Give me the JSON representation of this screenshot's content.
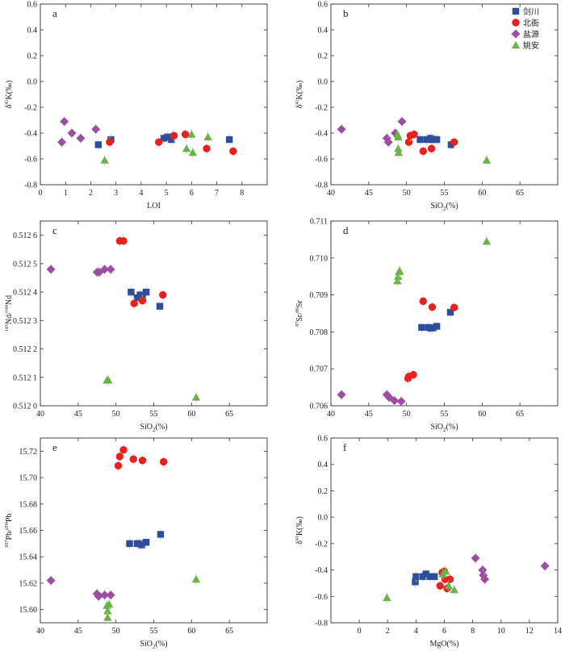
{
  "colors": {
    "jianchuan": "#2e4d9a",
    "beiya": "#e8211f",
    "yanyuan": "#9b4ea2",
    "yaoan": "#6ab446",
    "axis": "#333333"
  },
  "legend": [
    {
      "key": "jianchuan",
      "label": "剑川",
      "shape": "square"
    },
    {
      "key": "beiya",
      "label": "北衙",
      "shape": "circle"
    },
    {
      "key": "yanyuan",
      "label": "盐源",
      "shape": "diamond"
    },
    {
      "key": "yaoan",
      "label": "姚安",
      "shape": "triangle"
    }
  ],
  "chart_data": [
    {
      "panel": "a",
      "type": "scatter",
      "xlabel": "LOI",
      "ylabel_main": "δ",
      "ylabel_sup": "41",
      "ylabel_rest": "K(‰)",
      "ylabel_sub": "",
      "xlim": [
        0,
        9
      ],
      "ylim": [
        -0.8,
        0.6
      ],
      "xticks": [
        0,
        1,
        2,
        3,
        4,
        5,
        6,
        7,
        8
      ],
      "yticks": [
        -0.8,
        -0.6,
        -0.4,
        -0.2,
        0.0,
        0.2,
        0.4,
        0.6
      ],
      "ytick_labels": [
        "-0.8",
        "-0.6",
        "-0.4",
        "-0.2",
        "0.0",
        "0.2",
        "0.4",
        "0.6"
      ],
      "series": [
        {
          "key": "jianchuan",
          "points": [
            [
              2.3,
              -0.49
            ],
            [
              2.8,
              -0.45
            ],
            [
              4.9,
              -0.44
            ],
            [
              5.05,
              -0.43
            ],
            [
              5.2,
              -0.45
            ],
            [
              7.5,
              -0.45
            ]
          ]
        },
        {
          "key": "beiya",
          "points": [
            [
              2.75,
              -0.47
            ],
            [
              4.7,
              -0.47
            ],
            [
              5.3,
              -0.42
            ],
            [
              5.75,
              -0.41
            ],
            [
              6.6,
              -0.52
            ],
            [
              7.65,
              -0.54
            ]
          ]
        },
        {
          "key": "yanyuan",
          "points": [
            [
              0.85,
              -0.47
            ],
            [
              0.95,
              -0.31
            ],
            [
              1.25,
              -0.4
            ],
            [
              1.6,
              -0.44
            ],
            [
              2.2,
              -0.37
            ]
          ]
        },
        {
          "key": "yaoan",
          "points": [
            [
              2.55,
              -0.61
            ],
            [
              5.8,
              -0.52
            ],
            [
              6.0,
              -0.41
            ],
            [
              6.05,
              -0.55
            ],
            [
              6.65,
              -0.43
            ]
          ]
        }
      ]
    },
    {
      "panel": "b",
      "type": "scatter",
      "xlabel": "SiO",
      "xlabel_sub": "2",
      "xlabel_rest": "(%)",
      "ylabel_main": "δ",
      "ylabel_sup": "41",
      "ylabel_rest": "K(‰)",
      "ylabel_sub": "",
      "xlim": [
        40,
        70
      ],
      "ylim": [
        -0.8,
        0.6
      ],
      "xticks": [
        40,
        45,
        50,
        55,
        60,
        65
      ],
      "yticks": [
        -0.8,
        -0.6,
        -0.4,
        -0.2,
        0.0,
        0.2,
        0.4,
        0.6
      ],
      "ytick_labels": [
        "-0.8",
        "-0.6",
        "-0.4",
        "-0.2",
        "0.0",
        "0.2",
        "0.4",
        "0.6"
      ],
      "series": [
        {
          "key": "jianchuan",
          "points": [
            [
              51.8,
              -0.45
            ],
            [
              52.7,
              -0.45
            ],
            [
              53.2,
              -0.44
            ],
            [
              53.5,
              -0.45
            ],
            [
              54.0,
              -0.45
            ],
            [
              55.9,
              -0.49
            ]
          ]
        },
        {
          "key": "beiya",
          "points": [
            [
              50.3,
              -0.47
            ],
            [
              50.5,
              -0.42
            ],
            [
              51.0,
              -0.41
            ],
            [
              52.2,
              -0.54
            ],
            [
              53.3,
              -0.52
            ],
            [
              56.3,
              -0.47
            ]
          ]
        },
        {
          "key": "yanyuan",
          "points": [
            [
              41.4,
              -0.37
            ],
            [
              47.4,
              -0.44
            ],
            [
              47.6,
              -0.47
            ],
            [
              48.5,
              -0.4
            ],
            [
              49.4,
              -0.31
            ]
          ]
        },
        {
          "key": "yaoan",
          "points": [
            [
              48.8,
              -0.41
            ],
            [
              48.9,
              -0.43
            ],
            [
              48.9,
              -0.52
            ],
            [
              48.95,
              -0.55
            ],
            [
              60.6,
              -0.61
            ]
          ]
        }
      ]
    },
    {
      "panel": "c",
      "type": "scatter",
      "xlabel": "SiO",
      "xlabel_sub": "2",
      "xlabel_rest": "(%)",
      "ylabel_main": "",
      "ylabel_sup": "143",
      "ylabel_rest": "Nd/",
      "ylabel_sup2": "144",
      "ylabel_rest2": "Nd",
      "ylabel_sub": "",
      "xlim": [
        40,
        70
      ],
      "ylim": [
        0.512,
        0.51265
      ],
      "xticks": [
        40,
        45,
        50,
        55,
        60,
        65
      ],
      "yticks": [
        0.512,
        0.5121,
        0.5122,
        0.5123,
        0.5124,
        0.5125,
        0.5126
      ],
      "ytick_labels": [
        "0.512 0",
        "0.512 1",
        "0.512 2",
        "0.512 3",
        "0.512 4",
        "0.512 5",
        "0.512 6"
      ],
      "series": [
        {
          "key": "jianchuan",
          "points": [
            [
              52.0,
              0.5124
            ],
            [
              52.8,
              0.51238
            ],
            [
              53.2,
              0.51239
            ],
            [
              53.5,
              0.51239
            ],
            [
              54.0,
              0.5124
            ],
            [
              55.8,
              0.51235
            ]
          ]
        },
        {
          "key": "beiya",
          "points": [
            [
              50.5,
              0.51258
            ],
            [
              51.0,
              0.51258
            ],
            [
              52.4,
              0.51236
            ],
            [
              53.5,
              0.51237
            ],
            [
              56.2,
              0.51239
            ]
          ]
        },
        {
          "key": "yanyuan",
          "points": [
            [
              41.4,
              0.51248
            ],
            [
              47.5,
              0.51247
            ],
            [
              47.8,
              0.51247
            ],
            [
              48.5,
              0.51248
            ],
            [
              49.3,
              0.51248
            ]
          ]
        },
        {
          "key": "yaoan",
          "points": [
            [
              48.8,
              0.51209
            ],
            [
              49.0,
              0.51209
            ],
            [
              60.6,
              0.51203
            ]
          ]
        }
      ]
    },
    {
      "panel": "d",
      "type": "scatter",
      "xlabel": "SiO",
      "xlabel_sub": "2",
      "xlabel_rest": "(%)",
      "ylabel_main": "",
      "ylabel_sup": "87",
      "ylabel_rest": "Sr/",
      "ylabel_sup2": "86",
      "ylabel_rest2": "Sr",
      "ylabel_sub": "",
      "xlim": [
        40,
        70
      ],
      "ylim": [
        0.706,
        0.711
      ],
      "xticks": [
        40,
        45,
        50,
        55,
        60,
        65
      ],
      "yticks": [
        0.706,
        0.707,
        0.708,
        0.709,
        0.71,
        0.711
      ],
      "ytick_labels": [
        "0.706",
        "0.707",
        "0.708",
        "0.709",
        "0.710",
        "0.711"
      ],
      "series": [
        {
          "key": "jianchuan",
          "points": [
            [
              52.0,
              0.70812
            ],
            [
              52.9,
              0.70812
            ],
            [
              53.2,
              0.7081
            ],
            [
              53.5,
              0.70811
            ],
            [
              54.0,
              0.70815
            ],
            [
              55.8,
              0.70853
            ]
          ]
        },
        {
          "key": "beiya",
          "points": [
            [
              50.2,
              0.70674
            ],
            [
              50.3,
              0.70679
            ],
            [
              50.9,
              0.70684
            ],
            [
              52.2,
              0.70883
            ],
            [
              53.4,
              0.70867
            ],
            [
              56.3,
              0.70866
            ]
          ]
        },
        {
          "key": "yanyuan",
          "points": [
            [
              41.4,
              0.7063
            ],
            [
              47.4,
              0.7063
            ],
            [
              47.7,
              0.70623
            ],
            [
              48.4,
              0.70614
            ],
            [
              49.3,
              0.70612
            ]
          ]
        },
        {
          "key": "yaoan",
          "points": [
            [
              48.8,
              0.70938
            ],
            [
              48.9,
              0.7095
            ],
            [
              49.0,
              0.70963
            ],
            [
              49.1,
              0.70965
            ],
            [
              60.6,
              0.71045
            ]
          ]
        }
      ]
    },
    {
      "panel": "e",
      "type": "scatter",
      "xlabel": "SiO",
      "xlabel_sub": "2",
      "xlabel_rest": "(%)",
      "ylabel_main": "",
      "ylabel_sup": "207",
      "ylabel_rest": "Pb/",
      "ylabel_sup2": "204",
      "ylabel_rest2": "Pb",
      "ylabel_sub": "",
      "xlim": [
        40,
        70
      ],
      "ylim": [
        15.59,
        15.73
      ],
      "xticks": [
        40,
        45,
        50,
        55,
        60,
        65
      ],
      "yticks": [
        15.6,
        15.62,
        15.64,
        15.66,
        15.68,
        15.7,
        15.72
      ],
      "ytick_labels": [
        "15.60",
        "15.62",
        "15.64",
        "15.66",
        "15.68",
        "15.70",
        "15.72"
      ],
      "series": [
        {
          "key": "jianchuan",
          "points": [
            [
              51.8,
              15.65
            ],
            [
              52.8,
              15.65
            ],
            [
              53.1,
              15.65
            ],
            [
              53.4,
              15.649
            ],
            [
              54.0,
              15.651
            ],
            [
              55.9,
              15.657
            ]
          ]
        },
        {
          "key": "beiya",
          "points": [
            [
              50.3,
              15.709
            ],
            [
              50.5,
              15.716
            ],
            [
              51.0,
              15.721
            ],
            [
              52.3,
              15.714
            ],
            [
              53.5,
              15.713
            ],
            [
              56.3,
              15.712
            ]
          ]
        },
        {
          "key": "yanyuan",
          "points": [
            [
              41.4,
              15.622
            ],
            [
              47.5,
              15.612
            ],
            [
              47.7,
              15.61
            ],
            [
              48.5,
              15.611
            ],
            [
              49.3,
              15.611
            ]
          ]
        },
        {
          "key": "yaoan",
          "points": [
            [
              48.8,
              15.603
            ],
            [
              48.9,
              15.599
            ],
            [
              48.9,
              15.594
            ],
            [
              49.1,
              15.604
            ],
            [
              60.6,
              15.623
            ]
          ]
        }
      ]
    },
    {
      "panel": "f",
      "type": "scatter",
      "xlabel": "MgO(%)",
      "ylabel_main": "δ",
      "ylabel_sup": "41",
      "ylabel_rest": "K(‰)",
      "ylabel_sub": "",
      "xlim": [
        -2,
        14
      ],
      "ylim": [
        -0.8,
        0.6
      ],
      "xticks": [
        0,
        2,
        4,
        6,
        8,
        10,
        12,
        14
      ],
      "yticks": [
        -0.8,
        -0.6,
        -0.4,
        -0.2,
        0.0,
        0.2,
        0.4,
        0.6
      ],
      "ytick_labels": [
        "-0.8",
        "-0.6",
        "-0.4",
        "-0.2",
        "0.0",
        "0.2",
        "0.4",
        "0.6"
      ],
      "series": [
        {
          "key": "jianchuan",
          "points": [
            [
              3.95,
              -0.49
            ],
            [
              4.0,
              -0.45
            ],
            [
              4.5,
              -0.45
            ],
            [
              4.7,
              -0.43
            ],
            [
              5.0,
              -0.45
            ],
            [
              5.3,
              -0.45
            ]
          ]
        },
        {
          "key": "beiya",
          "points": [
            [
              5.7,
              -0.52
            ],
            [
              5.85,
              -0.42
            ],
            [
              6.0,
              -0.41
            ],
            [
              6.05,
              -0.47
            ],
            [
              6.2,
              -0.54
            ],
            [
              6.4,
              -0.47
            ]
          ]
        },
        {
          "key": "yanyuan",
          "points": [
            [
              8.2,
              -0.31
            ],
            [
              8.7,
              -0.4
            ],
            [
              8.75,
              -0.44
            ],
            [
              8.85,
              -0.47
            ],
            [
              13.1,
              -0.37
            ]
          ]
        },
        {
          "key": "yaoan",
          "points": [
            [
              1.95,
              -0.61
            ],
            [
              5.9,
              -0.43
            ],
            [
              6.1,
              -0.41
            ],
            [
              6.3,
              -0.52
            ],
            [
              6.7,
              -0.55
            ]
          ]
        }
      ]
    }
  ]
}
